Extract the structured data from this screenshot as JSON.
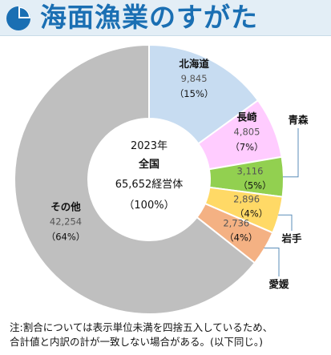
{
  "header": {
    "title": "海面漁業のすがた",
    "icon": "pie-chart-icon",
    "accent_color": "#1a6fb3"
  },
  "chart_data": {
    "type": "pie",
    "variant": "donut",
    "center_label": {
      "line1": "2023年",
      "line2": "全国",
      "line3": "65,652経営体",
      "line4": "（100%）"
    },
    "slices": [
      {
        "name": "北海道",
        "value": 9845,
        "value_label": "9,845",
        "pct_label": "（15%）",
        "color": "#c7dcf1",
        "label_position": "inside"
      },
      {
        "name": "長崎",
        "value": 4805,
        "value_label": "4,805",
        "pct_label": "（7%）",
        "color": "#ffccff",
        "label_position": "inside"
      },
      {
        "name": "青森",
        "value": 3116,
        "value_label": "3,116",
        "pct_label": "（5%）",
        "color": "#92d050",
        "label_position": "callout"
      },
      {
        "name": "岩手",
        "value": 2896,
        "value_label": "2,896",
        "pct_label": "（4%）",
        "color": "#ffd966",
        "label_position": "callout"
      },
      {
        "name": "愛媛",
        "value": 2736,
        "value_label": "2,736",
        "pct_label": "（4%）",
        "color": "#f4b183",
        "label_position": "callout"
      },
      {
        "name": "その他",
        "value": 42254,
        "value_label": "42,254",
        "pct_label": "（64%）",
        "color": "#bfbfbf",
        "label_position": "inside"
      }
    ]
  },
  "note": {
    "line1": "注:割合については表示単位未満を四捨五入しているため、",
    "line2": "合計値と内訳の計が一致しない場合がある。(以下同じ。)"
  }
}
